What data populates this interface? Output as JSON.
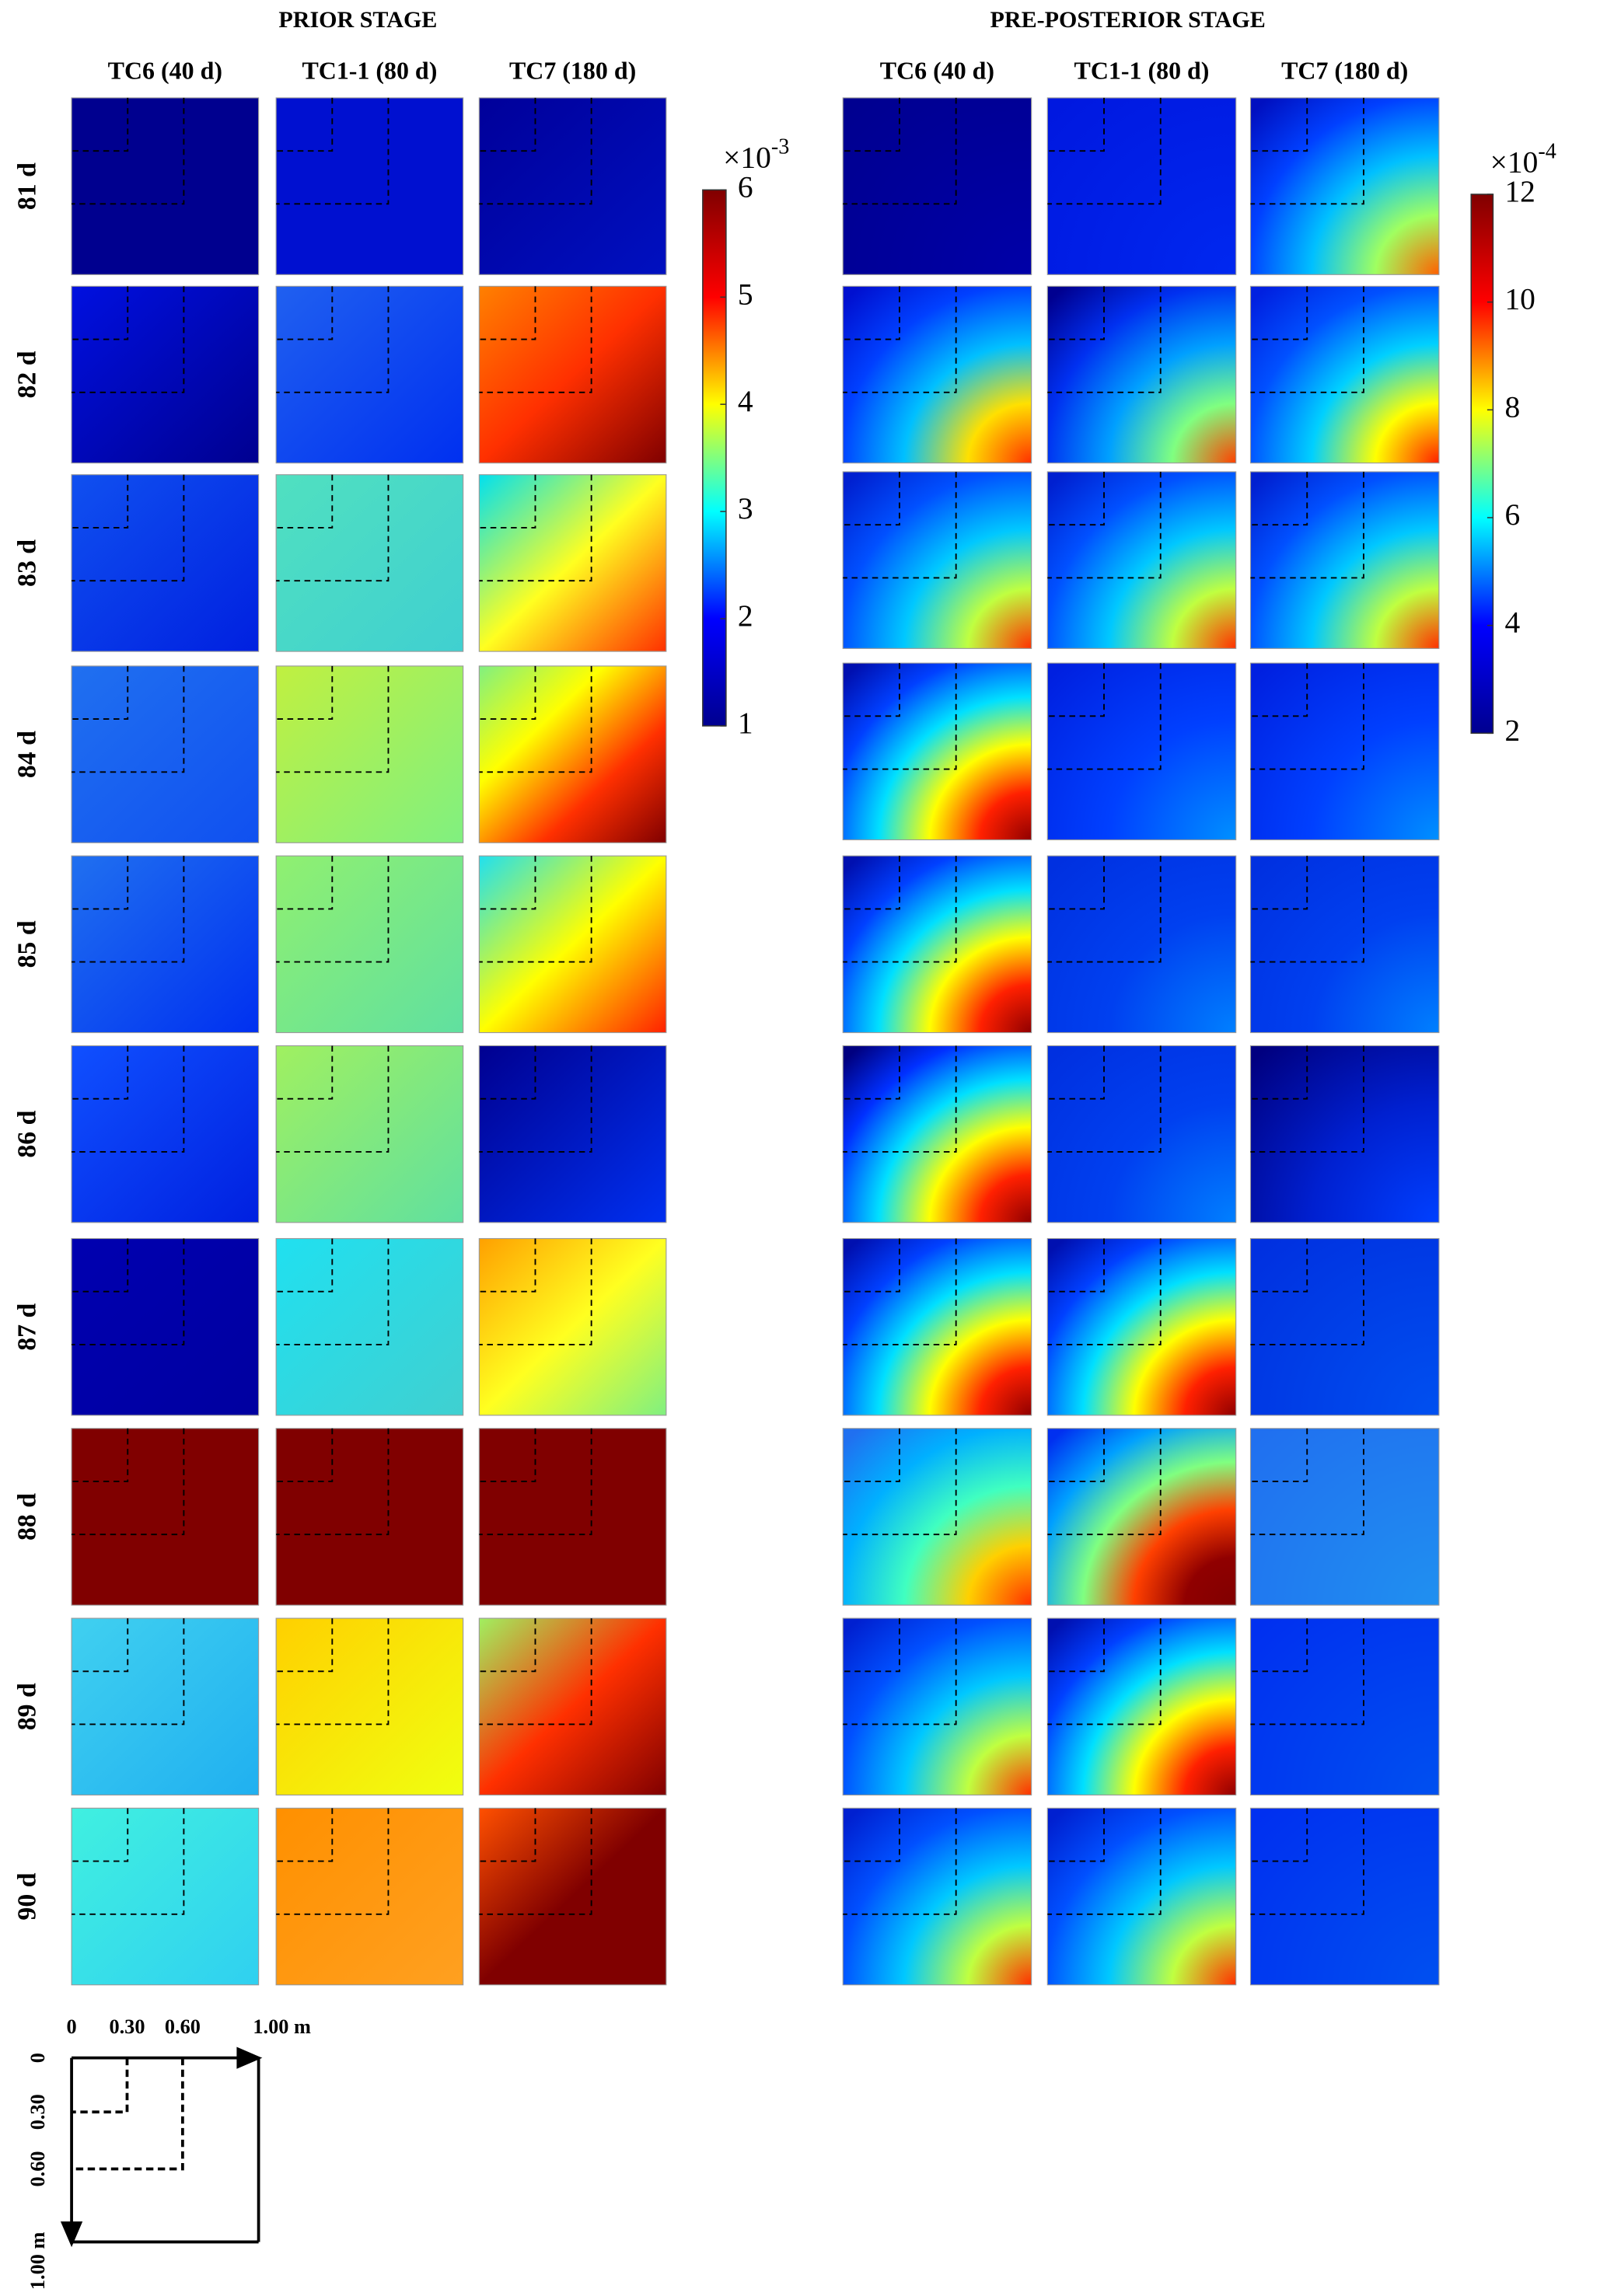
{
  "rows": [
    "81 d",
    "82 d",
    "83 d",
    "84 d",
    "85 d",
    "86 d",
    "87 d",
    "88 d",
    "89 d",
    "90 d"
  ],
  "stages": [
    {
      "title": "PRIOR STAGE",
      "columns": [
        "TC6 (40 d)",
        "TC1-1 (80 d)",
        "TC7 (180 d)"
      ],
      "shading": "linear",
      "colorbar": {
        "multiplier": "×10",
        "exponent": "-3",
        "lim": [
          1,
          6
        ],
        "ticks": [
          1,
          2,
          3,
          4,
          5,
          6
        ],
        "colormap": [
          "#00008f",
          "#0000ff",
          "#00ffff",
          "#ffff00",
          "#ff0000",
          "#800000"
        ]
      },
      "panels": [
        [
          [
            "#00008f",
            "#00008f"
          ],
          [
            "#0010d0",
            "#0010d0"
          ],
          [
            "#00009a",
            "#0010c0"
          ]
        ],
        [
          [
            "#0010e0",
            "#000090"
          ],
          [
            "#2060f0",
            "#0030f0"
          ],
          [
            "#ff8000",
            "#ff3000",
            "#800000"
          ]
        ],
        [
          [
            "#1050f0",
            "#0020e0"
          ],
          [
            "#50e0c0",
            "#40d0d0"
          ],
          [
            "#00e0f0",
            "#ffff20",
            "#ff3000"
          ]
        ],
        [
          [
            "#2070f0",
            "#1050f0"
          ],
          [
            "#c0f040",
            "#80f080"
          ],
          [
            "#80f080",
            "#ffff00",
            "#ff3000",
            "#800000"
          ]
        ],
        [
          [
            "#2070f0",
            "#0030f0"
          ],
          [
            "#90f070",
            "#60e0a0"
          ],
          [
            "#20e0f0",
            "#ffff00",
            "#ff2000"
          ]
        ],
        [
          [
            "#1050ff",
            "#0020e0"
          ],
          [
            "#a0f060",
            "#60e0a0"
          ],
          [
            "#000090",
            "#0030f0"
          ]
        ],
        [
          [
            "#0000b0",
            "#0000a0"
          ],
          [
            "#20e0f0",
            "#40d0d0"
          ],
          [
            "#ffa000",
            "#ffff20",
            "#80f080"
          ]
        ],
        [
          [
            "#800000",
            "#800000"
          ],
          [
            "#800000",
            "#800000"
          ],
          [
            "#800000",
            "#800000"
          ]
        ],
        [
          [
            "#40d0f0",
            "#20b0f0"
          ],
          [
            "#ffd000",
            "#f0ff10"
          ],
          [
            "#a0f060",
            "#ff3000",
            "#800000"
          ]
        ],
        [
          [
            "#40f0e0",
            "#30d0f0"
          ],
          [
            "#ff9000",
            "#ffa020"
          ],
          [
            "#ff5000",
            "#800000",
            "#800000"
          ]
        ]
      ]
    },
    {
      "title": "PRE-POSTERIOR STAGE",
      "columns": [
        "TC6 (40 d)",
        "TC1-1 (80 d)",
        "TC7 (180 d)"
      ],
      "shading": "radial",
      "colorbar": {
        "multiplier": "×10",
        "exponent": "-4",
        "lim": [
          2,
          12
        ],
        "ticks": [
          2,
          4,
          6,
          8,
          10,
          12
        ],
        "colormap": [
          "#00008f",
          "#0000ff",
          "#00ffff",
          "#ffff00",
          "#ff0000",
          "#800000"
        ]
      },
      "panels": [
        [
          [
            "#000090",
            "#0000a8"
          ],
          [
            "#0018e0",
            "#0028f0"
          ],
          [
            "#0010c0",
            "#0040ff",
            "#00c0ff",
            "#a0ff60",
            "#ff6000"
          ]
        ],
        [
          [
            "#0010d0",
            "#0040ff",
            "#00c0ff",
            "#ffe000",
            "#ff3000"
          ],
          [
            "#000090",
            "#0030f0",
            "#00a0ff",
            "#80ff80",
            "#ff4000"
          ],
          [
            "#0020e0",
            "#0050ff",
            "#00d0ff",
            "#ffff00",
            "#ff2000"
          ]
        ],
        [
          [
            "#0020d0",
            "#0050ff",
            "#00c8ff",
            "#c0ff40",
            "#ff3000"
          ],
          [
            "#0020d0",
            "#0050ff",
            "#00c8ff",
            "#c0ff40",
            "#ff3000"
          ],
          [
            "#0020d0",
            "#0050ff",
            "#00c8ff",
            "#c0ff40",
            "#ff3000"
          ]
        ],
        [
          [
            "#0010b0",
            "#0040ff",
            "#00e0ff",
            "#ffff00",
            "#ff2000",
            "#900000"
          ],
          [
            "#0020e0",
            "#0040ff",
            "#0090ff"
          ],
          [
            "#0020e0",
            "#0040ff",
            "#0090ff"
          ]
        ],
        [
          [
            "#0010b0",
            "#0040ff",
            "#00e0ff",
            "#ffff00",
            "#ff2000",
            "#900000"
          ],
          [
            "#0030e0",
            "#0040f0",
            "#0080ff"
          ],
          [
            "#0030e0",
            "#0040f0",
            "#0080ff"
          ]
        ],
        [
          [
            "#000080",
            "#0030ff",
            "#00e0ff",
            "#ffff00",
            "#ff2000",
            "#900000"
          ],
          [
            "#0030e0",
            "#0040f0",
            "#0080ff"
          ],
          [
            "#000080",
            "#0020d0",
            "#0040ff"
          ]
        ],
        [
          [
            "#0010b0",
            "#0040ff",
            "#00e0ff",
            "#ffff00",
            "#ff2000",
            "#900000"
          ],
          [
            "#0010b0",
            "#0040ff",
            "#00e0ff",
            "#ffff00",
            "#ff2000",
            "#900000"
          ],
          [
            "#0030e0",
            "#0050f0"
          ]
        ],
        [
          [
            "#2070f0",
            "#00b0ff",
            "#40ffc0",
            "#ffd000",
            "#ff3000"
          ],
          [
            "#0030f0",
            "#00a0ff",
            "#80ff80",
            "#ff4000",
            "#900000",
            "#800000"
          ],
          [
            "#2070f0",
            "#2090f0"
          ]
        ],
        [
          [
            "#0020d0",
            "#0050ff",
            "#00c8ff",
            "#c0ff40",
            "#ff3000"
          ],
          [
            "#0010b0",
            "#0040ff",
            "#00e0ff",
            "#ffff00",
            "#ff2000",
            "#900000"
          ],
          [
            "#0030f0",
            "#0050f0"
          ]
        ],
        [
          [
            "#0020d0",
            "#0050ff",
            "#00c8ff",
            "#c0ff40",
            "#ff3000"
          ],
          [
            "#0020d0",
            "#0050ff",
            "#00c8ff",
            "#c0ff40",
            "#ff3000"
          ],
          [
            "#0030f0",
            "#0050f0"
          ]
        ]
      ]
    }
  ],
  "schematic": {
    "top_labels": [
      "0",
      "0.30",
      "0.60",
      "1.00 m"
    ],
    "left_labels": [
      "0",
      "0.30",
      "0.60",
      "1.00 m"
    ]
  }
}
